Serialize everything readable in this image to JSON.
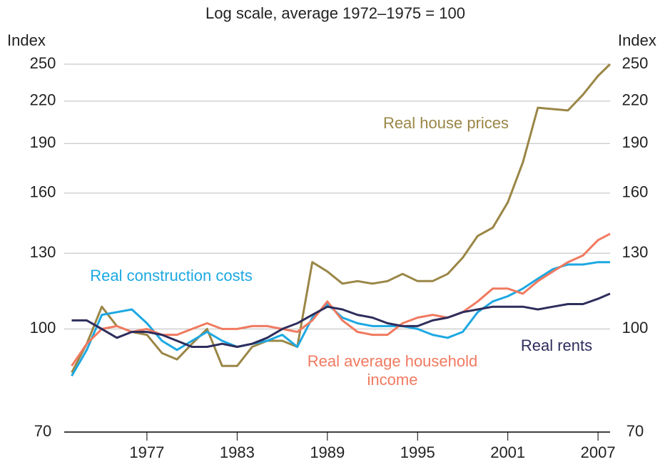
{
  "chart_data": {
    "type": "line",
    "title": "Log scale, average 1972–1975 = 100",
    "y_label": "Index",
    "y2_label": "Index",
    "log_scale": true,
    "grid": true,
    "x": [
      1972,
      1973,
      1974,
      1975,
      1976,
      1977,
      1978,
      1979,
      1980,
      1981,
      1982,
      1983,
      1984,
      1985,
      1986,
      1987,
      1988,
      1989,
      1990,
      1991,
      1992,
      1993,
      1994,
      1995,
      1996,
      1997,
      1998,
      1999,
      2000,
      2001,
      2002,
      2003,
      2004,
      2005,
      2006,
      2007,
      2007.8
    ],
    "xlim": [
      1971.5,
      2007.8
    ],
    "xticks": [
      1977,
      1983,
      1989,
      1995,
      2001,
      2007
    ],
    "ylim": [
      70,
      250
    ],
    "yticks": [
      70,
      100,
      130,
      160,
      190,
      220,
      250
    ],
    "series": [
      {
        "name": "Real house prices",
        "color": "#9a8646",
        "values": [
          86,
          95,
          108,
          101,
          99,
          98,
          92,
          90,
          95,
          100,
          88,
          88,
          94,
          96,
          96,
          94,
          126,
          122,
          117,
          118,
          117,
          118,
          121,
          118,
          118,
          121,
          128,
          138,
          142,
          155,
          178,
          215,
          214,
          213,
          225,
          240,
          250
        ]
      },
      {
        "name": "Real construction costs",
        "color": "#1ca8e2",
        "values": [
          85,
          93,
          105,
          106,
          107,
          102,
          96,
          93,
          96,
          99,
          96,
          94,
          95,
          96,
          98,
          94,
          104,
          109,
          104,
          102,
          101,
          101,
          101,
          100,
          98,
          97,
          99,
          106,
          110,
          112,
          115,
          119,
          123,
          125,
          125,
          126,
          126
        ]
      },
      {
        "name": "Real average household income",
        "color": "#f07a60",
        "values": [
          88,
          95,
          100,
          101,
          99,
          100,
          98,
          98,
          100,
          102,
          100,
          100,
          101,
          101,
          100,
          99,
          103,
          110,
          103,
          99,
          98,
          98,
          102,
          104,
          105,
          104,
          106,
          110,
          115,
          115,
          113,
          118,
          122,
          126,
          129,
          136,
          139
        ]
      },
      {
        "name": "Real rents",
        "color": "#2e2d5c",
        "values": [
          103,
          103,
          100,
          97,
          99,
          99,
          98,
          96,
          94,
          94,
          95,
          94,
          95,
          97,
          100,
          102,
          105,
          108,
          107,
          105,
          104,
          102,
          101,
          101,
          103,
          104,
          106,
          107,
          108,
          108,
          108,
          107,
          108,
          109,
          109,
          111,
          113
        ]
      }
    ]
  }
}
